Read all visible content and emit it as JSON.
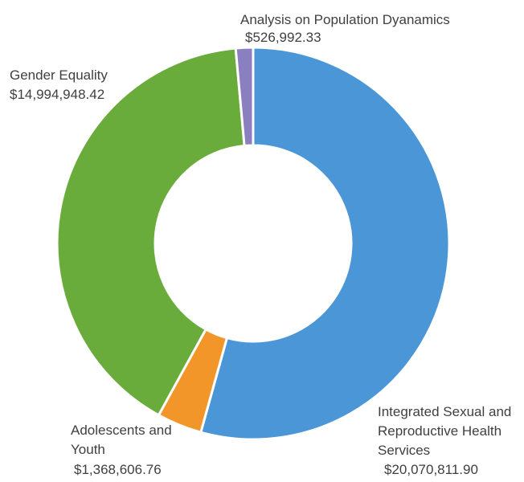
{
  "chart_data": {
    "type": "pie",
    "variant": "donut",
    "title": "",
    "start_angle_deg": 0,
    "direction": "clockwise",
    "slices": [
      {
        "label_lines": [
          "Integrated Sexual and",
          "Reproductive Health",
          "Services"
        ],
        "value": 20070811.9,
        "value_text": "$20,070,811.90",
        "color": "#4a96d6"
      },
      {
        "label_lines": [
          "Adolescents and",
          "Youth"
        ],
        "value": 1368606.76,
        "value_text": "$1,368,606.76",
        "color": "#f2962a"
      },
      {
        "label_lines": [
          "Gender Equality"
        ],
        "value": 14994948.42,
        "value_text": "$14,994,948.42",
        "color": "#6aac3c"
      },
      {
        "label_lines": [
          "Analysis on Population Dyanamics"
        ],
        "value": 526992.33,
        "value_text": "$526,992.33",
        "color": "#8a7fc0"
      }
    ]
  }
}
